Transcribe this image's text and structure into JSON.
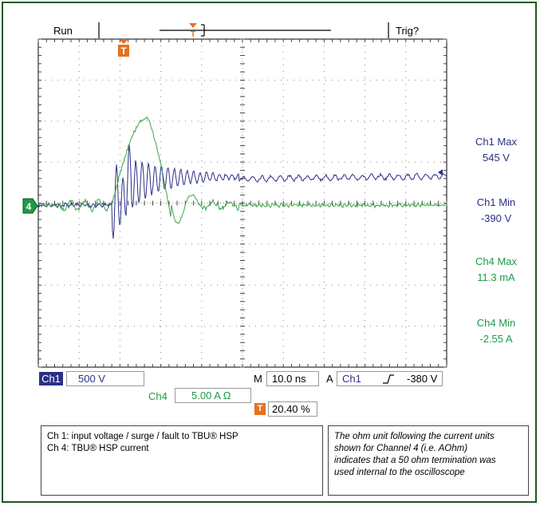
{
  "header": {
    "run_status": "Run",
    "trigger_status": "Trig?"
  },
  "measurements": [
    {
      "label": "Ch1 Max",
      "value": "545 V",
      "color": "#2b2f86"
    },
    {
      "label": "Ch1 Min",
      "value": "-390 V",
      "color": "#2b2f86"
    },
    {
      "label": "Ch4 Max",
      "value": "11.3 mA",
      "color": "#1e9a48"
    },
    {
      "label": "Ch4 Min",
      "value": "-2.55 A",
      "color": "#1e9a48"
    }
  ],
  "markers": {
    "trigger": "T",
    "ch4_ground": "4"
  },
  "readout": {
    "ch1_label": "Ch1",
    "ch1_scale": "500 V",
    "ch4_label": "Ch4",
    "ch4_scale": "5.00 A Ω",
    "time_label": "M",
    "time_scale": "10.0 ns",
    "trig_label": "A",
    "trig_source": "Ch1",
    "trig_slope_icon": "rising-edge-icon",
    "trig_level": "-380 V",
    "trig_pos_marker": "T",
    "trig_position": "20.40 %"
  },
  "notes": {
    "legend": [
      "Ch 1:  input voltage / surge / fault to TBU® HSP",
      "Ch 4:  TBU® HSP current"
    ],
    "ohm_note": [
      "The ohm unit following the current units",
      "shown for Channel 4 (i.e. AOhm)",
      "indicates that a 50 ohm termination was",
      "used internal to the oscilloscope"
    ]
  },
  "colors": {
    "ch1_trace": "#2b2f86",
    "ch4_trace": "#3aa648",
    "trigger_marker": "#e8701e",
    "frame": "#1a5a1a"
  }
}
